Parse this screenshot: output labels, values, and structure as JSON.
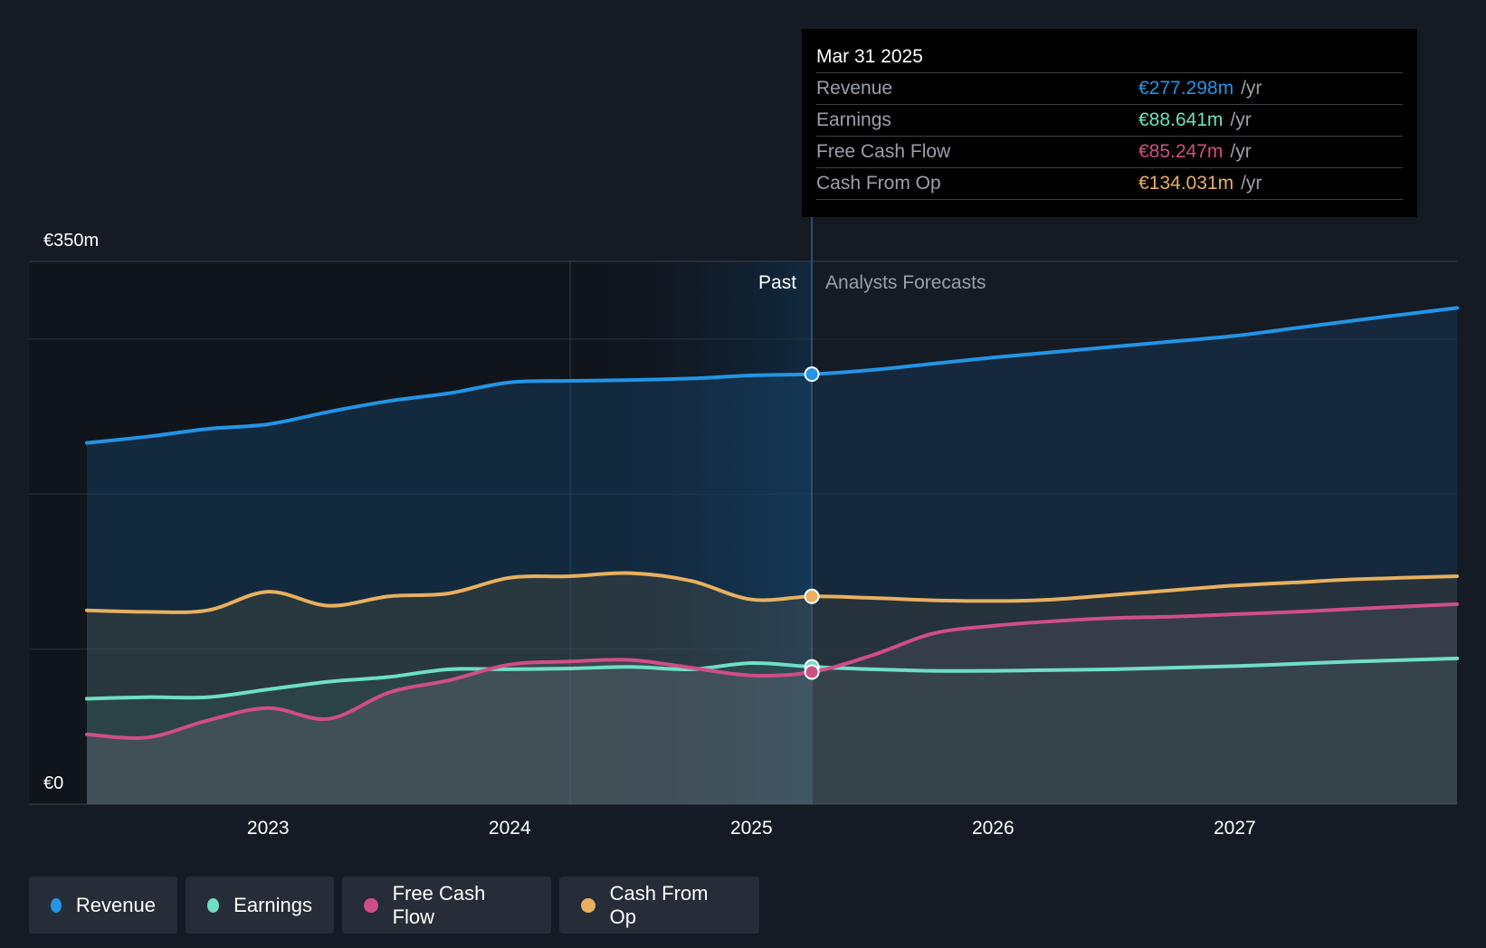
{
  "chart_data": {
    "type": "area",
    "x_range": [
      2022.25,
      2027.92
    ],
    "ylim": [
      0,
      350
    ],
    "y_tick_labels": {
      "top": "€350m",
      "bottom": "€0"
    },
    "x_ticks": [
      "2023",
      "2024",
      "2025",
      "2026",
      "2027"
    ],
    "past_label": "Past",
    "forecast_label": "Analysts Forecasts",
    "divider_x": 2025.25,
    "series": [
      {
        "name": "Revenue",
        "color": "#2394e6",
        "points": [
          [
            2022.25,
            233
          ],
          [
            2022.5,
            237
          ],
          [
            2022.75,
            242
          ],
          [
            2023.0,
            245
          ],
          [
            2023.25,
            253
          ],
          [
            2023.5,
            260
          ],
          [
            2023.75,
            265
          ],
          [
            2024.0,
            272
          ],
          [
            2024.25,
            273
          ],
          [
            2024.5,
            273.5
          ],
          [
            2024.75,
            274.5
          ],
          [
            2025.0,
            276.5
          ],
          [
            2025.25,
            277.3
          ],
          [
            2025.5,
            280
          ],
          [
            2025.75,
            284
          ],
          [
            2026.0,
            288
          ],
          [
            2026.25,
            291.5
          ],
          [
            2026.5,
            295
          ],
          [
            2026.75,
            298.5
          ],
          [
            2027.0,
            302
          ],
          [
            2027.25,
            307
          ],
          [
            2027.5,
            312
          ],
          [
            2027.92,
            320
          ]
        ]
      },
      {
        "name": "Cash From Op",
        "color": "#e8b060",
        "points": [
          [
            2022.25,
            125
          ],
          [
            2022.5,
            124
          ],
          [
            2022.75,
            125
          ],
          [
            2023.0,
            137
          ],
          [
            2023.25,
            128
          ],
          [
            2023.5,
            134
          ],
          [
            2023.75,
            136
          ],
          [
            2024.0,
            146
          ],
          [
            2024.25,
            147
          ],
          [
            2024.5,
            149
          ],
          [
            2024.75,
            144
          ],
          [
            2025.0,
            132
          ],
          [
            2025.25,
            134
          ],
          [
            2025.5,
            133
          ],
          [
            2025.75,
            131.5
          ],
          [
            2026.0,
            131
          ],
          [
            2026.25,
            132
          ],
          [
            2026.5,
            135
          ],
          [
            2026.75,
            138
          ],
          [
            2027.0,
            141
          ],
          [
            2027.25,
            143
          ],
          [
            2027.5,
            145
          ],
          [
            2027.92,
            147
          ]
        ]
      },
      {
        "name": "Earnings",
        "color": "#6fdfc4",
        "points": [
          [
            2022.25,
            68
          ],
          [
            2022.5,
            69
          ],
          [
            2022.75,
            69
          ],
          [
            2023.0,
            74
          ],
          [
            2023.25,
            79
          ],
          [
            2023.5,
            82
          ],
          [
            2023.75,
            87
          ],
          [
            2024.0,
            87
          ],
          [
            2024.25,
            87.5
          ],
          [
            2024.5,
            88.5
          ],
          [
            2024.75,
            87
          ],
          [
            2025.0,
            91
          ],
          [
            2025.25,
            88.6
          ],
          [
            2025.5,
            87
          ],
          [
            2025.75,
            86
          ],
          [
            2026.0,
            86
          ],
          [
            2026.25,
            86.5
          ],
          [
            2026.5,
            87
          ],
          [
            2026.75,
            88
          ],
          [
            2027.0,
            89
          ],
          [
            2027.25,
            90.5
          ],
          [
            2027.5,
            92
          ],
          [
            2027.92,
            94
          ]
        ]
      },
      {
        "name": "Free Cash Flow",
        "color": "#d04e86",
        "points": [
          [
            2022.25,
            45
          ],
          [
            2022.5,
            43
          ],
          [
            2022.75,
            54
          ],
          [
            2023.0,
            62
          ],
          [
            2023.25,
            55
          ],
          [
            2023.5,
            72
          ],
          [
            2023.75,
            80
          ],
          [
            2024.0,
            90
          ],
          [
            2024.25,
            92
          ],
          [
            2024.5,
            93
          ],
          [
            2024.75,
            88
          ],
          [
            2025.0,
            83
          ],
          [
            2025.25,
            85.2
          ],
          [
            2025.5,
            96
          ],
          [
            2025.75,
            110
          ],
          [
            2026.0,
            115
          ],
          [
            2026.25,
            118
          ],
          [
            2026.5,
            120
          ],
          [
            2026.75,
            121
          ],
          [
            2027.0,
            122.5
          ],
          [
            2027.25,
            124
          ],
          [
            2027.5,
            126
          ],
          [
            2027.92,
            129
          ]
        ]
      }
    ]
  },
  "tooltip": {
    "date": "Mar 31 2025",
    "rows": [
      {
        "label": "Revenue",
        "value": "€277.298m",
        "unit": "/yr",
        "color": "#2394e6"
      },
      {
        "label": "Earnings",
        "value": "€88.641m",
        "unit": "/yr",
        "color": "#6fdfc4"
      },
      {
        "label": "Free Cash Flow",
        "value": "€85.247m",
        "unit": "/yr",
        "color": "#d04e86"
      },
      {
        "label": "Cash From Op",
        "value": "€134.031m",
        "unit": "/yr",
        "color": "#e8b060"
      }
    ]
  },
  "legend": [
    {
      "label": "Revenue",
      "color": "#2394e6"
    },
    {
      "label": "Earnings",
      "color": "#6fdfc4"
    },
    {
      "label": "Free Cash Flow",
      "color": "#d04e86"
    },
    {
      "label": "Cash From Op",
      "color": "#e8b060"
    }
  ]
}
